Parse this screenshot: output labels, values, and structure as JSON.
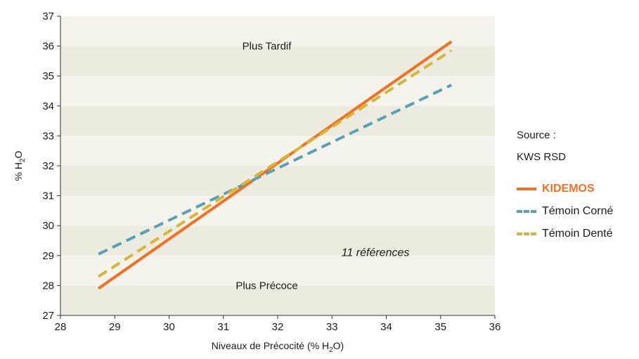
{
  "source": {
    "label": "Source :",
    "value": "KWS RSD"
  },
  "chart_data": {
    "type": "line",
    "xlabel": "Niveaux de Précocité (% H2O)",
    "xlabel_parts": {
      "pre": "Niveaux de Précocité (% H",
      "sub": "2",
      "post": "O)"
    },
    "ylabel": "% H2O",
    "ylabel_parts": {
      "pre": "% H",
      "sub": "2",
      "post": "O"
    },
    "xlim": [
      28,
      36
    ],
    "ylim": [
      27,
      37
    ],
    "x_ticks": [
      28,
      29,
      30,
      31,
      32,
      33,
      34,
      35,
      36
    ],
    "y_ticks": [
      27,
      28,
      29,
      30,
      31,
      32,
      33,
      34,
      35,
      36,
      37
    ],
    "background_bands": true,
    "band_colors": [
      "#ecebe0",
      "#f5f4ec"
    ],
    "annotations": [
      {
        "text": "Plus Tardif",
        "x": 31.8,
        "y": 36,
        "style": "normal"
      },
      {
        "text": "Plus Précoce",
        "x": 31.8,
        "y": 28,
        "style": "normal"
      },
      {
        "text": "11 références",
        "x": 33.8,
        "y": 29.1,
        "style": "italic"
      }
    ],
    "series": [
      {
        "name": "KIDEMOS",
        "color": "#f36f21",
        "dash": "solid",
        "x": [
          28.7,
          35.2
        ],
        "y": [
          27.9,
          36.15
        ]
      },
      {
        "name": "Témoin Corné",
        "color": "#5a9fb3",
        "dash": "dashed",
        "x": [
          28.7,
          35.2
        ],
        "y": [
          29.05,
          34.7
        ]
      },
      {
        "name": "Témoin Denté",
        "color": "#d6b63a",
        "dash": "dashed",
        "x": [
          28.7,
          35.2
        ],
        "y": [
          28.3,
          35.85
        ]
      }
    ],
    "legend": {
      "placement": "right"
    }
  }
}
